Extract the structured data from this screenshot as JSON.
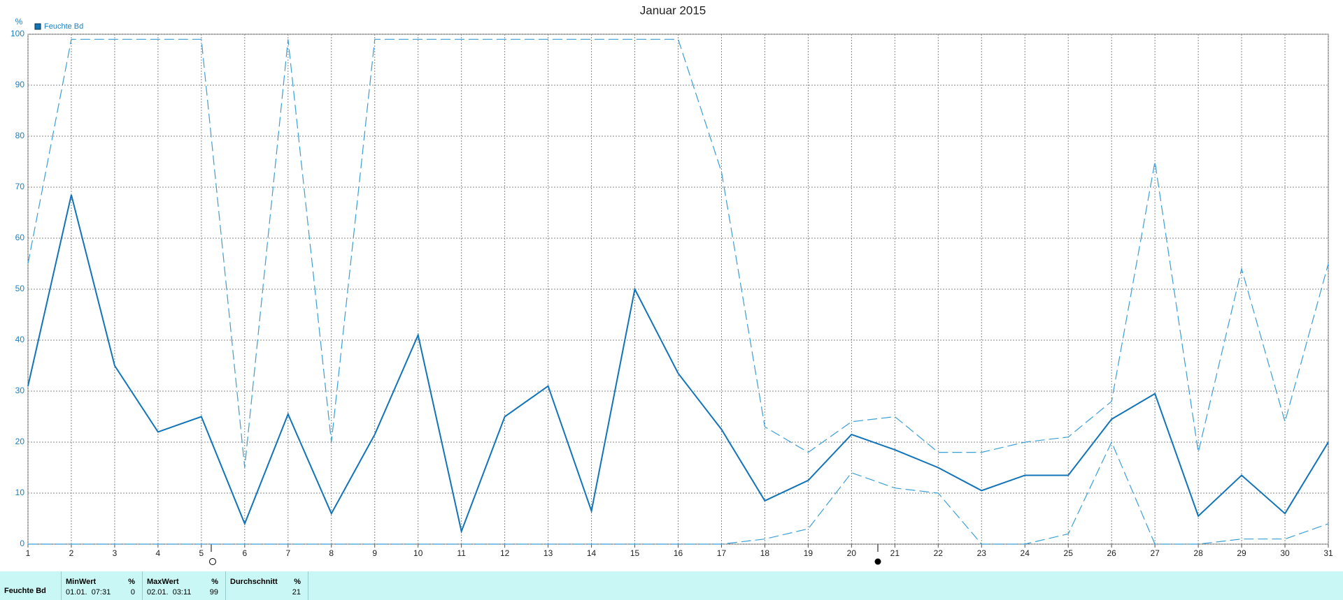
{
  "chart_data": {
    "type": "line",
    "title": "Januar 2015",
    "y_label": "%",
    "x": [
      1,
      2,
      3,
      4,
      5,
      6,
      7,
      8,
      9,
      10,
      11,
      12,
      13,
      14,
      15,
      16,
      17,
      18,
      19,
      20,
      21,
      22,
      23,
      24,
      25,
      26,
      27,
      28,
      29,
      30,
      31
    ],
    "xlim": [
      1,
      31
    ],
    "xticks": [
      1,
      2,
      3,
      4,
      5,
      6,
      7,
      8,
      9,
      10,
      11,
      12,
      13,
      14,
      15,
      16,
      17,
      18,
      19,
      20,
      21,
      22,
      23,
      24,
      25,
      26,
      27,
      28,
      29,
      30,
      31
    ],
    "ylim": [
      0,
      100
    ],
    "yticks": [
      0,
      10,
      20,
      30,
      40,
      50,
      60,
      70,
      80,
      90,
      100
    ],
    "grid": true,
    "series": [
      {
        "name": "Feuchte Bd",
        "color": "#1274b8",
        "dashed": false,
        "values": [
          31,
          68.5,
          35,
          22,
          25,
          4,
          25.5,
          6,
          21.5,
          41,
          2.5,
          25,
          31,
          6.5,
          50,
          33.5,
          22.5,
          8.5,
          12.5,
          21.5,
          18.5,
          15,
          10.5,
          13.5,
          13.5,
          24.5,
          29.5,
          5.5,
          13.5,
          6,
          20
        ]
      },
      {
        "color": "#3a9fd6",
        "dashed": true,
        "values": [
          55,
          99,
          99,
          99,
          99,
          15,
          99,
          20,
          99,
          99,
          99,
          99,
          99,
          99,
          99,
          99,
          73,
          23,
          18,
          24,
          25,
          18,
          18,
          20,
          21,
          28,
          75,
          18,
          54,
          24,
          55
        ]
      },
      {
        "color": "#3a9fd6",
        "dashed": true,
        "values": [
          0,
          0,
          0,
          0,
          0,
          0,
          0,
          0,
          0,
          0,
          0,
          0,
          0,
          0,
          0,
          0,
          0,
          1,
          3,
          14,
          11,
          10,
          0,
          0,
          2,
          20,
          0,
          0,
          1,
          1,
          4
        ]
      }
    ]
  },
  "summary": {
    "row_label": "Feuchte Bd",
    "columns": [
      {
        "header": "MinWert",
        "unit": "%",
        "time": "01.01.  07:31",
        "value": 0
      },
      {
        "header": "MaxWert",
        "unit": "%",
        "time": "02.01.  03:11",
        "value": 99
      },
      {
        "header": "Durchschnitt",
        "unit": "%",
        "value": 21
      }
    ]
  }
}
